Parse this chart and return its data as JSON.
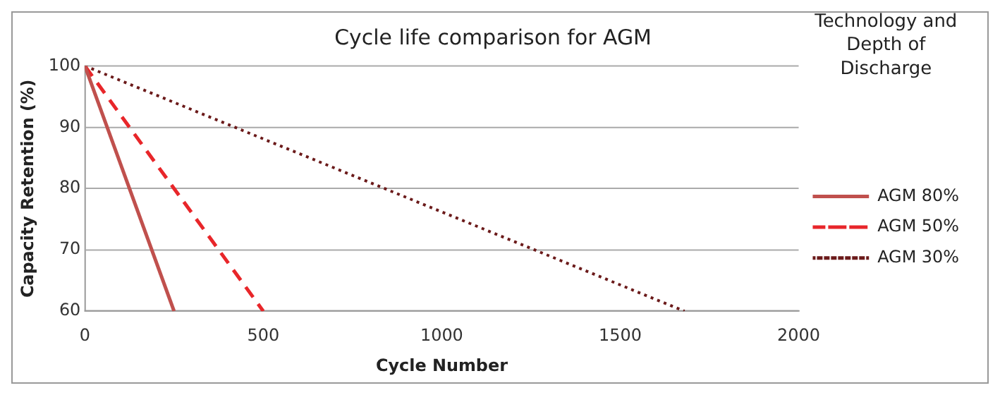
{
  "chart_data": {
    "type": "line",
    "title": "Cycle life comparison for AGM",
    "xlabel": "Cycle Number",
    "ylabel": "Capacity Retention (%)",
    "legend_title": "Technology and Depth of Discharge",
    "legend": "right",
    "grid": "y",
    "marker": "none",
    "xlim": [
      0,
      2000
    ],
    "xticks": [
      0,
      500,
      1000,
      1500,
      2000
    ],
    "ylim": [
      60,
      100
    ],
    "yticks": [
      60,
      70,
      80,
      90,
      100
    ],
    "series": [
      {
        "name": "AGM 80%",
        "color": "#c0504d",
        "line_style": "solid",
        "x": [
          0,
          250
        ],
        "values": [
          100,
          60
        ]
      },
      {
        "name": "AGM 50%",
        "color": "#e8262a",
        "line_style": "dashed",
        "x": [
          0,
          500
        ],
        "values": [
          100,
          60
        ]
      },
      {
        "name": "AGM 30%",
        "color": "#6b1a1a",
        "line_style": "dotted",
        "x": [
          0,
          1680
        ],
        "values": [
          100,
          60
        ]
      }
    ]
  }
}
